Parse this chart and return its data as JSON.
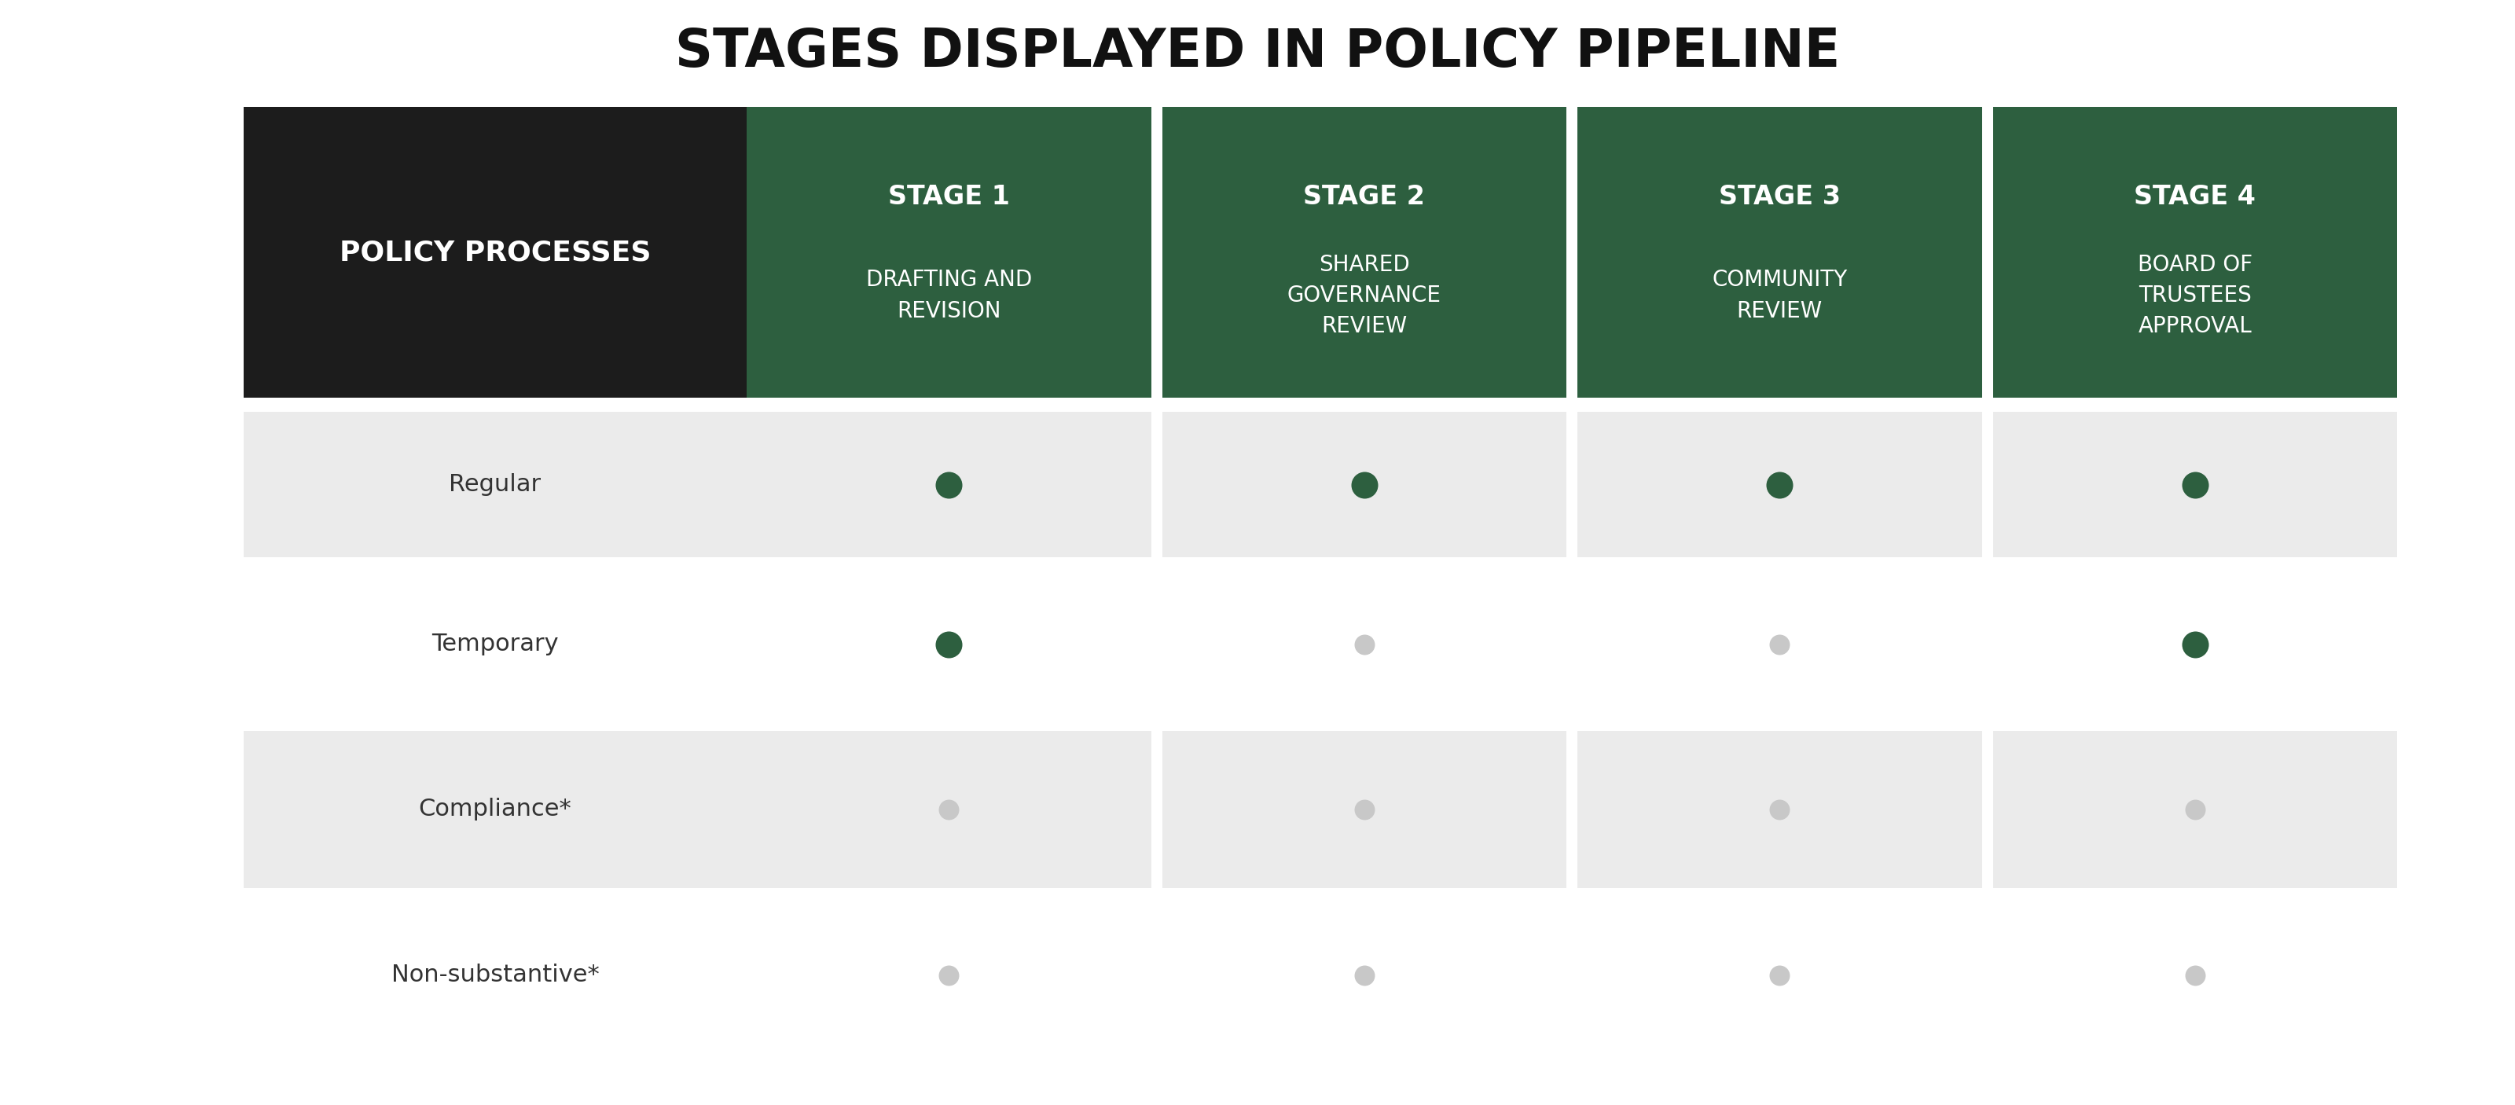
{
  "title": "STAGES DISPLAYED IN POLICY PIPELINE",
  "title_fontsize": 48,
  "background_color": "#ffffff",
  "header_black": "#1c1c1c",
  "header_green": "#2d5f3f",
  "col_header_text_color": "#ffffff",
  "row_label_color": "#333333",
  "row_bg_shaded": "#ebebeb",
  "row_bg_white": "#ffffff",
  "dot_green": "#2d5f3f",
  "dot_gray": "#c8c8c8",
  "stage_bold": [
    "STAGE 1",
    "STAGE 2",
    "STAGE 3",
    "STAGE 4"
  ],
  "stage_sub": [
    "DRAFTING AND\nREVISION",
    "SHARED\nGOVERNANCE\nREVIEW",
    "COMMUNITY\nREVIEW",
    "BOARD OF\nTRUSTEES\nAPPROVAL"
  ],
  "rows": [
    {
      "label": "Regular",
      "shaded": true,
      "dots": [
        true,
        true,
        true,
        true
      ]
    },
    {
      "label": "Temporary",
      "shaded": false,
      "dots": [
        true,
        false,
        false,
        true
      ]
    },
    {
      "label": "Compliance*",
      "shaded": true,
      "dots": [
        false,
        false,
        false,
        false
      ]
    },
    {
      "label": "Non-substantive*",
      "shaded": false,
      "dots": [
        false,
        false,
        false,
        false
      ]
    }
  ]
}
